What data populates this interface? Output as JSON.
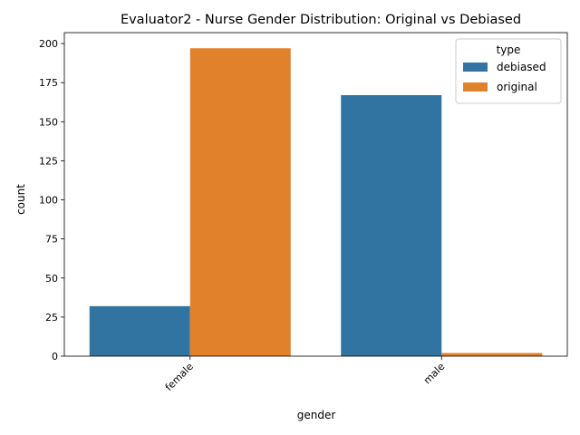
{
  "chart_data": {
    "type": "bar",
    "title": "Evaluator2 - Nurse Gender Distribution: Original vs Debiased",
    "xlabel": "gender",
    "ylabel": "count",
    "categories": [
      "female",
      "male"
    ],
    "series": [
      {
        "name": "debiased",
        "values": [
          32,
          167
        ],
        "color": "#3274a1"
      },
      {
        "name": "original",
        "values": [
          197,
          2
        ],
        "color": "#e1812c"
      }
    ],
    "ylim": [
      0,
      207
    ],
    "yticks": [
      0,
      25,
      50,
      75,
      100,
      125,
      150,
      175,
      200
    ],
    "legend": {
      "title": "type",
      "placement": "top-right"
    },
    "grid": false
  }
}
